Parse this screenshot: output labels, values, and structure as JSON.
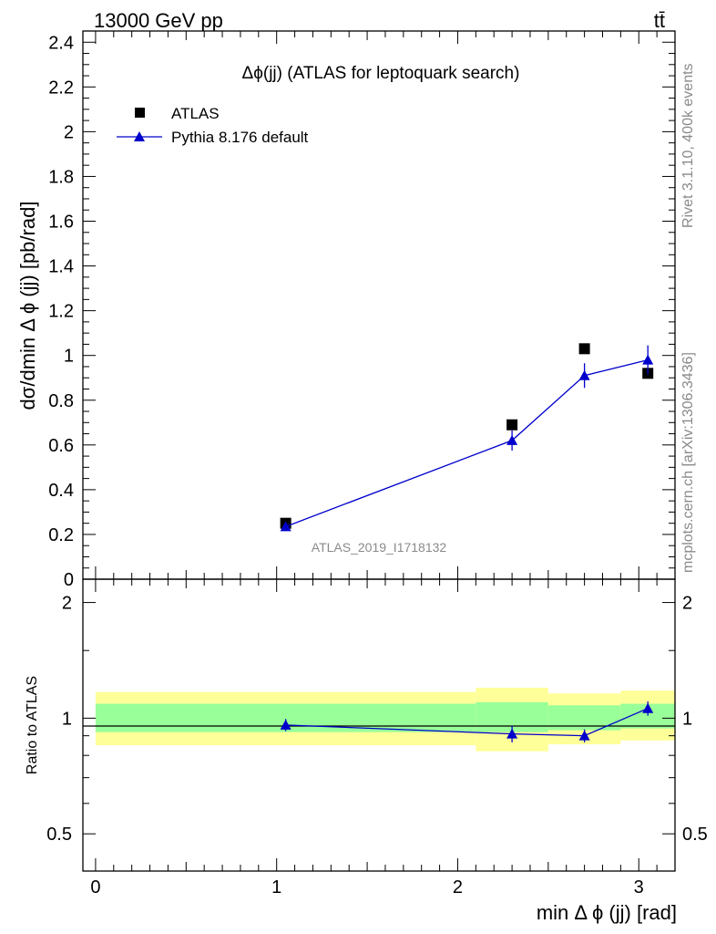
{
  "header": {
    "left": "13000 GeV pp",
    "right": "tt̄"
  },
  "side_labels": {
    "rivet": "Rivet 3.1.10,  400k events",
    "mcplots": "mcplots.cern.ch [arXiv:1306.3436]"
  },
  "colors": {
    "atlas": "#000000",
    "pythia": "#0000cc",
    "band_outer": "#ffff99",
    "band_inner": "#99ff99",
    "watermark": "#8a8a8a"
  },
  "chart_data": [
    {
      "type": "scatter",
      "title": "Δϕ(jj) (ATLAS for leptoquark search)",
      "xlabel": "min Δ ϕ (jj) [rad]",
      "ylabel": "dσ/dmin Δ ϕ (jj) [pb/rad]",
      "watermark": "ATLAS_2019_I1718132",
      "xlim": [
        -0.07,
        3.2
      ],
      "ylim": [
        0,
        2.45
      ],
      "yticks": [
        "0",
        "0.2",
        "0.4",
        "0.6",
        "0.8",
        "1",
        "1.2",
        "1.4",
        "1.6",
        "1.8",
        "2",
        "2.2",
        "2.4"
      ],
      "legend_position": "top-left",
      "series": [
        {
          "name": "ATLAS",
          "marker": "square",
          "x": [
            1.05,
            2.3,
            2.7,
            3.05
          ],
          "y": [
            0.25,
            0.69,
            1.03,
            0.92
          ]
        },
        {
          "name": "Pythia 8.176 default",
          "marker": "triangle",
          "x": [
            1.05,
            2.3,
            2.7,
            3.05
          ],
          "y": [
            0.235,
            0.62,
            0.91,
            0.98
          ],
          "yerr": [
            0.012,
            0.045,
            0.055,
            0.065
          ]
        }
      ]
    },
    {
      "type": "line",
      "ylabel": "Ratio to ATLAS",
      "xlim": [
        -0.07,
        3.2
      ],
      "ylim": [
        0.4,
        2.3
      ],
      "yscale": "log",
      "yticks": [
        "0.5",
        "1",
        "2"
      ],
      "xticks": [
        "0",
        "1",
        "2",
        "3"
      ],
      "bands": {
        "edges": [
          0,
          2.1,
          2.5,
          2.9,
          3.2
        ],
        "outer_low": [
          0.85,
          0.82,
          0.855,
          0.875,
          0.84
        ],
        "outer_high": [
          1.17,
          1.2,
          1.16,
          1.18,
          1.18
        ],
        "inner_low": [
          0.92,
          0.92,
          0.93,
          0.94,
          0.92
        ],
        "inner_high": [
          1.09,
          1.1,
          1.08,
          1.09,
          1.09
        ]
      },
      "series": [
        {
          "name": "Pythia 8.176 default",
          "x": [
            1.05,
            2.3,
            2.7,
            3.05
          ],
          "y": [
            0.96,
            0.91,
            0.9,
            1.06
          ],
          "yerr": [
            0.035,
            0.045,
            0.035,
            0.045
          ]
        }
      ]
    }
  ]
}
